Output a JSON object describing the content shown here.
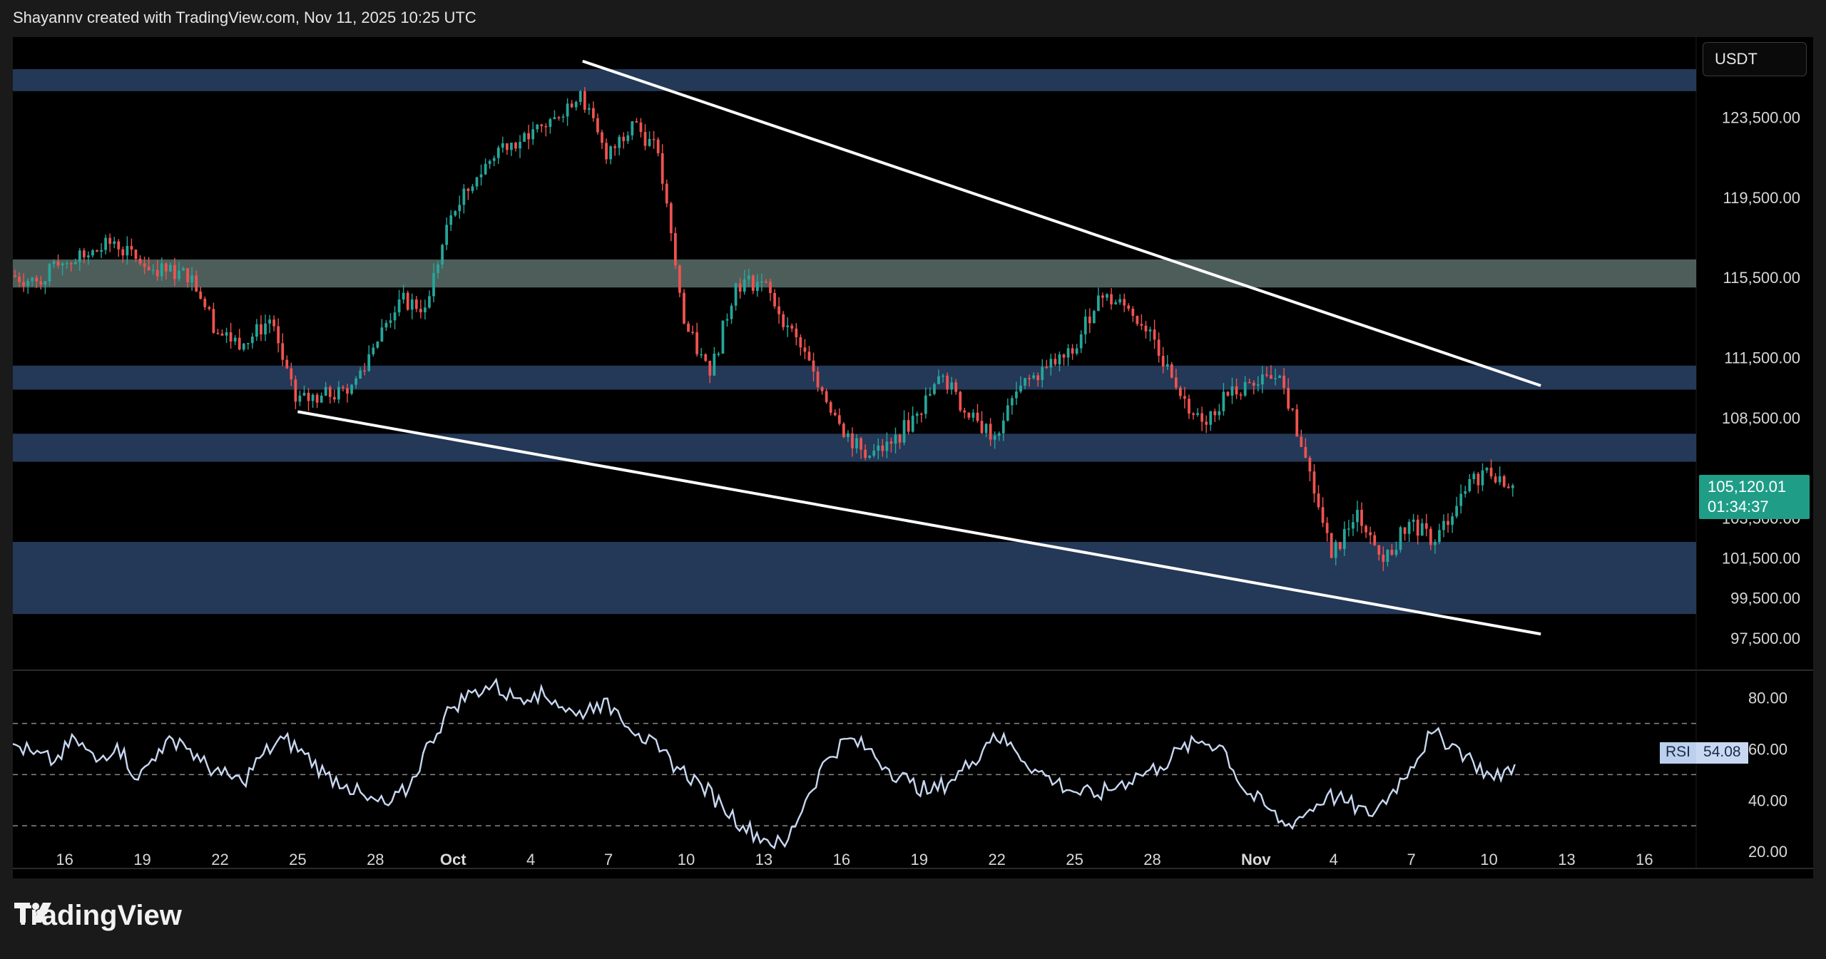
{
  "header": {
    "credit": "Shayannv created with TradingView.com, Nov 11, 2025 10:25 UTC"
  },
  "toolbar": {
    "currency_label": "USDT"
  },
  "brand": {
    "name": "TradingView"
  },
  "price_tag": {
    "price": "105,120.01",
    "countdown": "01:34:37"
  },
  "rsi_tag": {
    "label": "RSI",
    "value": "54.08"
  },
  "colors": {
    "background": "#000000",
    "bull": "#26a69a",
    "bear": "#ef5350",
    "zone_blue": "#2a4266",
    "zone_gray": "#5a6e6a",
    "trendline": "#ffffff",
    "rsi_line": "#c9d8f2"
  },
  "chart_data": [
    {
      "type": "candlestick",
      "symbol_quote": "USDT",
      "ylim": [
        96000,
        127500
      ],
      "y_ticks": [
        123500,
        119500,
        115500,
        111500,
        108500,
        103500,
        101500,
        99500,
        97500
      ],
      "y_tick_labels": [
        "123,500.00",
        "119,500.00",
        "115,500.00",
        "111,500.00",
        "108,500.00",
        "103,500.00",
        "101,500.00",
        "99,500.00",
        "97,500.00"
      ],
      "x_tick_labels": [
        "16",
        "19",
        "22",
        "25",
        "28",
        "Oct",
        "4",
        "7",
        "10",
        "13",
        "16",
        "19",
        "22",
        "25",
        "28",
        "Nov",
        "4",
        "7",
        "10",
        "13",
        "16"
      ],
      "x_tick_dates": [
        "2025-09-16",
        "2025-09-19",
        "2025-09-22",
        "2025-09-25",
        "2025-09-28",
        "2025-10-01",
        "2025-10-04",
        "2025-10-07",
        "2025-10-10",
        "2025-10-13",
        "2025-10-16",
        "2025-10-19",
        "2025-10-22",
        "2025-10-25",
        "2025-10-28",
        "2025-11-01",
        "2025-11-04",
        "2025-11-07",
        "2025-11-10",
        "2025-11-13",
        "2025-11-16"
      ],
      "x_range": [
        "2025-09-14",
        "2025-11-18"
      ],
      "last_price": 105120.01,
      "close_series": [
        {
          "x": "2025-09-14",
          "close": 115600
        },
        {
          "x": "2025-09-15",
          "close": 115300
        },
        {
          "x": "2025-09-16",
          "close": 116200
        },
        {
          "x": "2025-09-17",
          "close": 116600
        },
        {
          "x": "2025-09-18",
          "close": 117300
        },
        {
          "x": "2025-09-19",
          "close": 116200
        },
        {
          "x": "2025-09-20",
          "close": 115800
        },
        {
          "x": "2025-09-21",
          "close": 115600
        },
        {
          "x": "2025-09-22",
          "close": 112700
        },
        {
          "x": "2025-09-23",
          "close": 112200
        },
        {
          "x": "2025-09-24",
          "close": 113400
        },
        {
          "x": "2025-09-25",
          "close": 109300
        },
        {
          "x": "2025-09-26",
          "close": 109600
        },
        {
          "x": "2025-09-27",
          "close": 109700
        },
        {
          "x": "2025-09-28",
          "close": 112000
        },
        {
          "x": "2025-09-29",
          "close": 114400
        },
        {
          "x": "2025-09-30",
          "close": 114000
        },
        {
          "x": "2025-10-01",
          "close": 118600
        },
        {
          "x": "2025-10-02",
          "close": 120500
        },
        {
          "x": "2025-10-03",
          "close": 122200
        },
        {
          "x": "2025-10-04",
          "close": 122400
        },
        {
          "x": "2025-10-05",
          "close": 123500
        },
        {
          "x": "2025-10-06",
          "close": 124800
        },
        {
          "x": "2025-10-07",
          "close": 121400
        },
        {
          "x": "2025-10-08",
          "close": 123300
        },
        {
          "x": "2025-10-09",
          "close": 121700
        },
        {
          "x": "2025-10-10",
          "close": 113200
        },
        {
          "x": "2025-10-11",
          "close": 110600
        },
        {
          "x": "2025-10-12",
          "close": 115200
        },
        {
          "x": "2025-10-13",
          "close": 115300
        },
        {
          "x": "2025-10-14",
          "close": 113100
        },
        {
          "x": "2025-10-15",
          "close": 110800
        },
        {
          "x": "2025-10-16",
          "close": 108200
        },
        {
          "x": "2025-10-17",
          "close": 106500
        },
        {
          "x": "2025-10-18",
          "close": 107200
        },
        {
          "x": "2025-10-19",
          "close": 108700
        },
        {
          "x": "2025-10-20",
          "close": 110600
        },
        {
          "x": "2025-10-21",
          "close": 108500
        },
        {
          "x": "2025-10-22",
          "close": 107600
        },
        {
          "x": "2025-10-23",
          "close": 110100
        },
        {
          "x": "2025-10-24",
          "close": 111000
        },
        {
          "x": "2025-10-25",
          "close": 111700
        },
        {
          "x": "2025-10-26",
          "close": 114600
        },
        {
          "x": "2025-10-27",
          "close": 114100
        },
        {
          "x": "2025-10-28",
          "close": 112900
        },
        {
          "x": "2025-10-29",
          "close": 110000
        },
        {
          "x": "2025-10-30",
          "close": 108300
        },
        {
          "x": "2025-10-31",
          "close": 109600
        },
        {
          "x": "2025-11-01",
          "close": 110100
        },
        {
          "x": "2025-11-02",
          "close": 110600
        },
        {
          "x": "2025-11-03",
          "close": 106500
        },
        {
          "x": "2025-11-04",
          "close": 101500
        },
        {
          "x": "2025-11-05",
          "close": 103900
        },
        {
          "x": "2025-11-06",
          "close": 101300
        },
        {
          "x": "2025-11-07",
          "close": 103300
        },
        {
          "x": "2025-11-08",
          "close": 102300
        },
        {
          "x": "2025-11-09",
          "close": 104700
        },
        {
          "x": "2025-11-10",
          "close": 106000
        },
        {
          "x": "2025-11-11",
          "close": 105120
        }
      ],
      "zones": [
        {
          "low": 124800,
          "high": 125900,
          "color": "blue"
        },
        {
          "low": 115000,
          "high": 116400,
          "color": "gray"
        },
        {
          "low": 109900,
          "high": 111100,
          "color": "blue"
        },
        {
          "low": 106300,
          "high": 107700,
          "color": "blue"
        },
        {
          "low": 98700,
          "high": 102300,
          "color": "blue"
        }
      ],
      "trendlines": [
        {
          "from": {
            "x": "2025-10-06",
            "y": 126300
          },
          "to": {
            "x": "2025-11-12",
            "y": 110100
          }
        },
        {
          "from": {
            "x": "2025-09-25",
            "y": 108800
          },
          "to": {
            "x": "2025-11-12",
            "y": 97700
          }
        }
      ]
    },
    {
      "type": "line",
      "name": "RSI",
      "ylim": [
        15,
        88
      ],
      "y_ticks": [
        80,
        60,
        40,
        20
      ],
      "y_tick_labels": [
        "80.00",
        "60.00",
        "40.00",
        "20.00"
      ],
      "bands": [
        70,
        50,
        30
      ],
      "series": [
        {
          "values": [
            62,
            58,
            55,
            64,
            55,
            62,
            48,
            60,
            64,
            55,
            50,
            47,
            58,
            64,
            58,
            50,
            46,
            40,
            38,
            45,
            63,
            76,
            82,
            85,
            80,
            82,
            79,
            73,
            78,
            75,
            66,
            59,
            52,
            46,
            38,
            30,
            25,
            22,
            40,
            56,
            64,
            60,
            52,
            47,
            43,
            48,
            55,
            66,
            60,
            52,
            47,
            43,
            42,
            46,
            50,
            53,
            60,
            63,
            61,
            44,
            38,
            30,
            35,
            42,
            39,
            34,
            42,
            53,
            66,
            62,
            55,
            48,
            54
          ]
        }
      ]
    }
  ]
}
